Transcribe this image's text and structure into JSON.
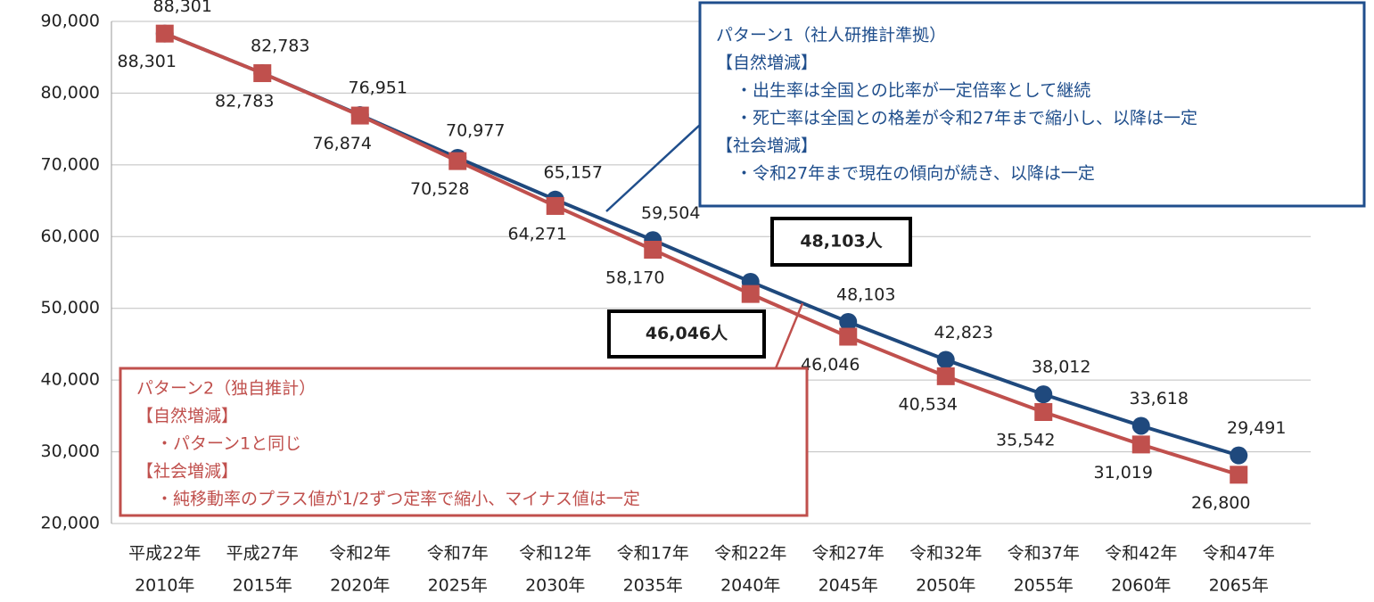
{
  "chart_data": {
    "type": "line",
    "categories": [
      [
        "平成22年",
        "2010年"
      ],
      [
        "平成27年",
        "2015年"
      ],
      [
        "令和2年",
        "2020年"
      ],
      [
        "令和7年",
        "2025年"
      ],
      [
        "令和12年",
        "2030年"
      ],
      [
        "令和17年",
        "2035年"
      ],
      [
        "令和22年",
        "2040年"
      ],
      [
        "令和27年",
        "2045年"
      ],
      [
        "令和32年",
        "2050年"
      ],
      [
        "令和37年",
        "2055年"
      ],
      [
        "令和42年",
        "2060年"
      ],
      [
        "令和47年",
        "2065年"
      ]
    ],
    "ylim": [
      20000,
      90000
    ],
    "yticks": [
      {
        "value": 20000,
        "label": "20,000"
      },
      {
        "value": 30000,
        "label": "30,000"
      },
      {
        "value": 40000,
        "label": "40,000"
      },
      {
        "value": 50000,
        "label": "50,000"
      },
      {
        "value": 60000,
        "label": "60,000"
      },
      {
        "value": 70000,
        "label": "70,000"
      },
      {
        "value": 80000,
        "label": "80,000"
      },
      {
        "value": 90000,
        "label": "90,000"
      }
    ],
    "grid": true,
    "series": [
      {
        "color": "#1f497d",
        "marker": "circle",
        "values": [
          88301,
          82783,
          76951,
          70977,
          65157,
          59504,
          53700,
          48103,
          42823,
          38012,
          33618,
          29491
        ],
        "value_labels": [
          "88,301",
          "82,783",
          "76,951",
          "70,977",
          "65,157",
          "59,504",
          null,
          "48,103",
          "42,823",
          "38,012",
          "33,618",
          "29,491"
        ]
      },
      {
        "color": "#c0504d",
        "marker": "square",
        "values": [
          88301,
          82783,
          76874,
          70528,
          64271,
          58170,
          52000,
          46046,
          40534,
          35542,
          31019,
          26800
        ],
        "value_labels": [
          "88,301",
          "82,783",
          "76,874",
          "70,528",
          "64,271",
          "58,170",
          null,
          "46,046",
          "40,534",
          "35,542",
          "31,019",
          "26,800"
        ]
      }
    ],
    "callouts": [
      {
        "color": "#1f4e8c",
        "lines": [
          "パターン1（社人研推計準拠）",
          "【自然増減】",
          "・出生率は全国との比率が一定倍率として継続",
          "・死亡率は全国との格差が令和27年まで縮小し、以降は一定",
          "【社会増減】",
          "・令和27年まで現在の傾向が続き、以降は一定"
        ]
      },
      {
        "color": "#c0504d",
        "lines": [
          "パターン2（独自推計）",
          "【自然増減】",
          "・パターン1と同じ",
          "【社会増減】",
          "・純移動率のプラス値が1/2ずつ定率で縮小、マイナス値は一定"
        ]
      }
    ],
    "highlights": [
      "48,103人",
      "46,046人"
    ]
  }
}
